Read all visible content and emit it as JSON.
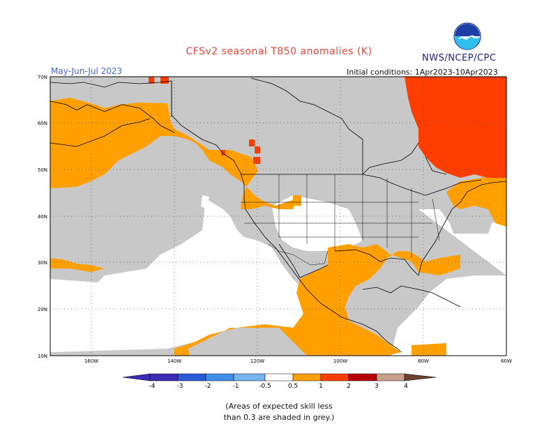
{
  "header": {
    "title": "CFSv2 seasonal T850 anomalies (K)",
    "org": "NWS/NCEP/CPC",
    "season": "May-Jun-Jul 2023",
    "initial_conditions": "Initial conditions: 1Apr2023-10Apr2023",
    "logo_text": "NOAA"
  },
  "axes": {
    "lat_labels": [
      "70N",
      "60N",
      "50N",
      "40N",
      "30N",
      "20N",
      "10N"
    ],
    "lon_labels": [
      "160W",
      "140W",
      "120W",
      "100W",
      "80W",
      "60W"
    ]
  },
  "colorbar": {
    "labels": [
      "-4",
      "-3",
      "-2",
      "-1",
      "-0.5",
      "0.5",
      "1",
      "2",
      "3",
      "4"
    ],
    "colors": [
      "#3b2bb5",
      "#2a5bd7",
      "#3f8fe8",
      "#74b3f0",
      "#ffffff",
      "#ffa000",
      "#ff3d00",
      "#b40000",
      "#c6a08c",
      "#6e4030"
    ]
  },
  "legend_note": {
    "line1": "(Areas of expected skill less",
    "line2": "than 0.3 are shaded in grey.)"
  },
  "colors": {
    "skill_grey": "#c8c8c8",
    "anomaly_05_1": "#ffa000",
    "anomaly_1_2": "#ff3d00",
    "title": "#e8443a"
  }
}
